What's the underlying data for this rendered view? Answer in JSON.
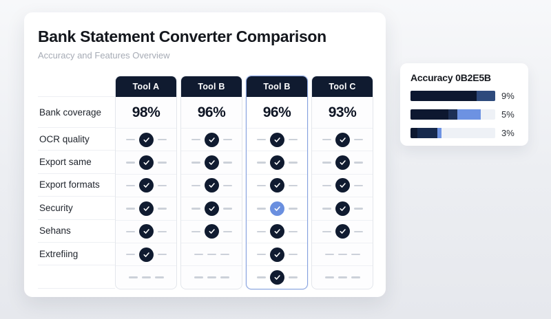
{
  "header": {
    "title": "Bank Statement Converter Comparison",
    "subtitle": "Accuracy and Features Overview"
  },
  "colors": {
    "navy": "#101b30",
    "blue_check": "#6a8fdf",
    "highlight_border": "#84a0de",
    "dash": "#ccd1d9"
  },
  "table": {
    "columns": [
      {
        "label": "Tool A",
        "highlighted": false
      },
      {
        "label": "Tool B",
        "highlighted": false
      },
      {
        "label": "Tool B",
        "highlighted": true
      },
      {
        "label": "Tool C",
        "highlighted": false
      }
    ],
    "rows": [
      {
        "label": "Bank coverage",
        "type": "values",
        "values": [
          "98%",
          "96%",
          "96%",
          "93%"
        ]
      },
      {
        "label": "OCR quality",
        "cells": [
          "check",
          "check",
          "check",
          "check"
        ]
      },
      {
        "label": "Export same",
        "cells": [
          "check",
          "check",
          "check",
          "check"
        ]
      },
      {
        "label": "Export formats",
        "cells": [
          "check",
          "check",
          "check",
          "check"
        ]
      },
      {
        "label": "Security",
        "cells": [
          "check",
          "check",
          "check-blue",
          "check"
        ]
      },
      {
        "label": "Sehans",
        "cells": [
          "check",
          "check",
          "check",
          "check"
        ]
      },
      {
        "label": "Extrefiing",
        "cells": [
          "check",
          "dashes",
          "check",
          "dashes"
        ]
      },
      {
        "label": "",
        "cells": [
          "dashes",
          "dashes",
          "check",
          "dashes"
        ]
      }
    ]
  },
  "accuracy_card": {
    "title": "Accuracy 0B2E5B",
    "bars": [
      {
        "label": "9%",
        "total_pct": 100,
        "segments": [
          {
            "color": "#0d1830",
            "pct": 78
          },
          {
            "color": "#2e4a7c",
            "pct": 22
          }
        ]
      },
      {
        "label": "5%",
        "total_pct": 83,
        "segments": [
          {
            "color": "#0d1830",
            "pct": 45
          },
          {
            "color": "#1d3055",
            "pct": 10
          },
          {
            "color": "#6d92e2",
            "pct": 28
          }
        ]
      },
      {
        "label": "3%",
        "total_pct": 37,
        "segments": [
          {
            "color": "#0d1830",
            "pct": 8
          },
          {
            "color": "#16294d",
            "pct": 24
          },
          {
            "color": "#6d92e2",
            "pct": 5
          }
        ]
      }
    ]
  }
}
